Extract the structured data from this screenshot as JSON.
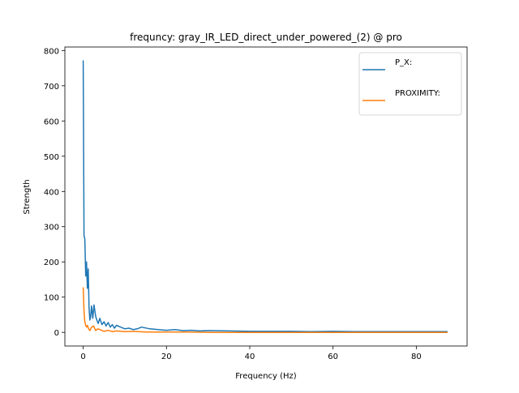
{
  "chart_data": {
    "type": "line",
    "title": "frequncy: gray_IR_LED_direct_under_powered_(2) @ pro",
    "xlabel": "Frequency (Hz)",
    "ylabel": "Strength",
    "xlim": [
      -4.4,
      92.2
    ],
    "ylim": [
      -38.7,
      810
    ],
    "x_ticks": [
      0,
      20,
      40,
      60,
      80
    ],
    "y_ticks": [
      0,
      100,
      200,
      300,
      400,
      500,
      600,
      700,
      800
    ],
    "grid": false,
    "legend": "top-right",
    "series": [
      {
        "name": "P_X:",
        "color": "#1f77b4",
        "x": [
          0,
          0.2,
          0.4,
          0.6,
          0.8,
          1.0,
          1.2,
          1.4,
          1.6,
          1.8,
          2.0,
          2.3,
          2.6,
          3.0,
          3.3,
          3.6,
          4.0,
          4.5,
          5.0,
          5.5,
          6.0,
          6.5,
          7.0,
          7.5,
          8.0,
          9.0,
          10.0,
          11.0,
          12.0,
          13.0,
          14.0,
          16.0,
          18.0,
          20.0,
          22.0,
          24.0,
          26.0,
          28.0,
          30.0,
          35.0,
          40.0,
          45.0,
          50.0,
          55.0,
          60.0,
          65.0,
          70.0,
          75.0,
          80.0,
          85.0,
          87.5
        ],
        "values": [
          772,
          275,
          265,
          160,
          200,
          125,
          180,
          70,
          35,
          45,
          75,
          40,
          78,
          45,
          35,
          25,
          40,
          22,
          30,
          18,
          28,
          15,
          22,
          12,
          20,
          15,
          10,
          12,
          8,
          10,
          15,
          10,
          8,
          6,
          8,
          5,
          6,
          4,
          5,
          4,
          3,
          3,
          3,
          2,
          3,
          2,
          2,
          2,
          2,
          2,
          2
        ]
      },
      {
        "name": "PROXIMITY:",
        "color": "#ff7f0e",
        "x": [
          0,
          0.2,
          0.4,
          0.6,
          0.8,
          1.0,
          1.3,
          1.6,
          2.0,
          2.5,
          3.0,
          3.5,
          4.0,
          5.0,
          6.0,
          7.0,
          8.0,
          10.0,
          12.0,
          15.0,
          20.0,
          25.0,
          30.0,
          40.0,
          50.0,
          60.0,
          70.0,
          80.0,
          87.5
        ],
        "values": [
          128,
          60,
          30,
          20,
          15,
          20,
          10,
          5,
          15,
          18,
          5,
          10,
          8,
          3,
          6,
          2,
          4,
          2,
          3,
          1,
          1,
          1,
          0,
          0,
          0,
          0,
          0,
          0,
          0
        ]
      }
    ]
  }
}
